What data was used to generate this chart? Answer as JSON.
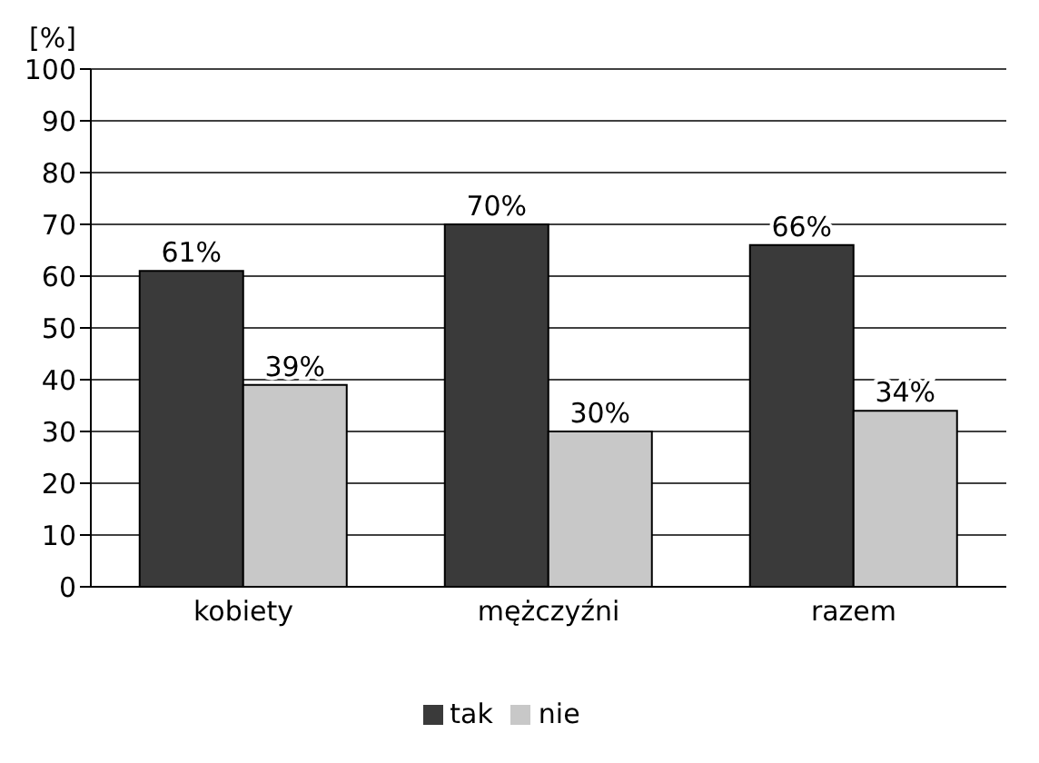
{
  "chart_data": {
    "type": "bar",
    "ylabel": "[%]",
    "categories": [
      "kobiety",
      "mężczyźni",
      "razem"
    ],
    "series": [
      {
        "name": "tak",
        "color": "#3a3a3a",
        "values": [
          61,
          70,
          66
        ],
        "value_labels": [
          "61%",
          "70%",
          "66%"
        ]
      },
      {
        "name": "nie",
        "color": "#c8c8c8",
        "values": [
          39,
          30,
          34
        ],
        "value_labels": [
          "39%",
          "30%",
          "34%"
        ]
      }
    ],
    "ylim": [
      0,
      100
    ],
    "yticks": [
      0,
      10,
      20,
      30,
      40,
      50,
      60,
      70,
      80,
      90,
      100
    ],
    "grid": "y",
    "legend": "bottom"
  }
}
